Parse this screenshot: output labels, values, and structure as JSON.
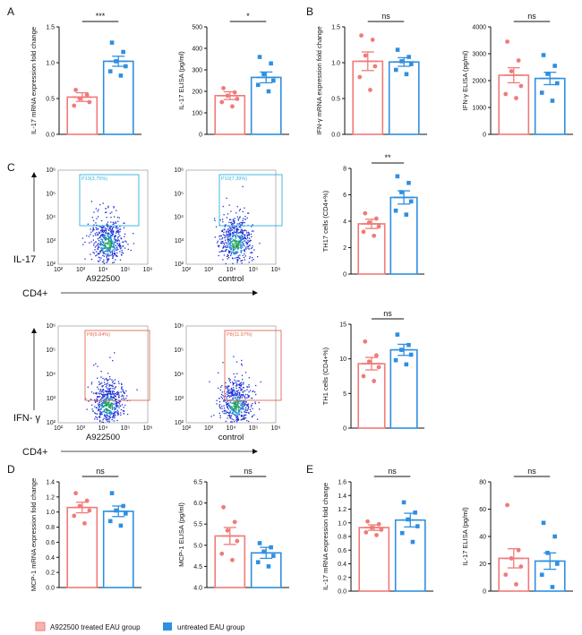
{
  "legend": {
    "items": [
      {
        "label": "A922500 treated EAU group",
        "color": "#f07b78"
      },
      {
        "label": "untreated EAU group",
        "color": "#2f8fe0"
      }
    ]
  },
  "colors": {
    "red": "#f07b78",
    "blue": "#2f8fe0",
    "gate_blue": "#2cb4e0",
    "gate_red": "#e06a55"
  },
  "chart_data": [
    {
      "panel": "A",
      "type": "bar",
      "ylabel": "IL-17 mRNA expression fold change",
      "categories": [
        "A922500 treated EAU group",
        "untreated EAU group"
      ],
      "values": [
        0.52,
        1.02
      ],
      "sem": [
        0.06,
        0.07
      ],
      "ylim": [
        0,
        1.5
      ],
      "yticks": [
        "0.0",
        "0.5",
        "1.0",
        "1.5"
      ],
      "significance": "***",
      "points": [
        [
          0.62,
          0.55,
          0.5,
          0.45,
          0.4
        ],
        [
          1.28,
          1.15,
          1.02,
          0.95,
          0.88,
          0.82
        ]
      ]
    },
    {
      "panel": "A",
      "type": "bar",
      "ylabel": "IL-17 ELISA (pg/ml)",
      "categories": [
        "A922500 treated EAU group",
        "untreated EAU group"
      ],
      "values": [
        180,
        265
      ],
      "sem": [
        18,
        25
      ],
      "ylim": [
        0,
        500
      ],
      "yticks": [
        "0",
        "100",
        "200",
        "300",
        "400",
        "500"
      ],
      "significance": "*",
      "points": [
        [
          215,
          195,
          180,
          165,
          150,
          130
        ],
        [
          360,
          330,
          280,
          250,
          230,
          200
        ]
      ]
    },
    {
      "panel": "B",
      "type": "bar",
      "ylabel": "IFN-γ mRNA expression fold change",
      "categories": [
        "A922500 treated EAU group",
        "untreated EAU group"
      ],
      "values": [
        1.02,
        1.01
      ],
      "sem": [
        0.13,
        0.06
      ],
      "ylim": [
        0,
        1.5
      ],
      "yticks": [
        "0.0",
        "0.5",
        "1.0",
        "1.5"
      ],
      "significance": "ns",
      "points": [
        [
          1.38,
          1.32,
          1.1,
          0.95,
          0.8,
          0.62
        ],
        [
          1.18,
          1.08,
          1.02,
          0.98,
          0.9,
          0.84
        ]
      ]
    },
    {
      "panel": "B",
      "type": "bar",
      "ylabel": "IFN-γ ELISA (pg/ml)",
      "categories": [
        "A922500 treated EAU group",
        "untreated EAU group"
      ],
      "values": [
        2200,
        2080
      ],
      "sem": [
        280,
        230
      ],
      "ylim": [
        0,
        4000
      ],
      "yticks": [
        "0",
        "1000",
        "2000",
        "3000",
        "4000"
      ],
      "significance": "ns",
      "points": [
        [
          3450,
          2750,
          2350,
          1800,
          1500,
          1350
        ],
        [
          2950,
          2550,
          2250,
          1900,
          1550,
          1250
        ]
      ]
    },
    {
      "panel": "C",
      "type": "bar",
      "ylabel": "TH17 cells (CD4+%)",
      "categories": [
        "A922500 treated EAU group",
        "untreated EAU group"
      ],
      "values": [
        3.8,
        5.8
      ],
      "sem": [
        0.35,
        0.5
      ],
      "ylim": [
        0,
        8
      ],
      "yticks": [
        "0",
        "2",
        "4",
        "6",
        "8"
      ],
      "significance": "**",
      "points": [
        [
          4.6,
          4.2,
          3.9,
          3.6,
          3.2,
          2.9
        ],
        [
          7.4,
          6.9,
          6.2,
          5.5,
          4.8,
          4.5
        ]
      ]
    },
    {
      "panel": "C",
      "type": "bar",
      "ylabel": "TH1 cells (CD4+%)",
      "categories": [
        "A922500 treated EAU group",
        "untreated EAU group"
      ],
      "values": [
        9.3,
        11.3
      ],
      "sem": [
        0.9,
        0.8
      ],
      "ylim": [
        0,
        15
      ],
      "yticks": [
        "0",
        "5",
        "10",
        "15"
      ],
      "significance": "ns",
      "points": [
        [
          12.5,
          10.5,
          9.6,
          8.8,
          7.5,
          6.8
        ],
        [
          13.5,
          12.0,
          11.3,
          10.6,
          9.8,
          9.2
        ]
      ]
    },
    {
      "panel": "D",
      "type": "bar",
      "ylabel": "MCP-1 mRNA expression fold change",
      "categories": [
        "A922500 treated EAU group",
        "untreated EAU group"
      ],
      "values": [
        1.06,
        1.01
      ],
      "sem": [
        0.07,
        0.07
      ],
      "ylim": [
        0.0,
        1.4
      ],
      "yticks": [
        "0.0",
        "0.2",
        "0.4",
        "0.6",
        "0.8",
        "1.0",
        "1.2",
        "1.4"
      ],
      "significance": "ns",
      "points": [
        [
          1.25,
          1.15,
          1.08,
          1.02,
          0.95,
          0.85
        ],
        [
          1.25,
          1.08,
          1.02,
          0.98,
          0.88,
          0.82
        ]
      ]
    },
    {
      "panel": "D",
      "type": "bar",
      "ylabel": "MCP-1 ELISA (pg/ml)",
      "categories": [
        "A922500 treated EAU group",
        "untreated EAU group"
      ],
      "values": [
        5.22,
        4.82
      ],
      "sem": [
        0.2,
        0.13
      ],
      "ylim": [
        4.0,
        6.5
      ],
      "yticks": [
        "4.0",
        "4.5",
        "5.0",
        "5.5",
        "6.0",
        "6.5"
      ],
      "significance": "ns",
      "points": [
        [
          5.9,
          5.55,
          5.35,
          5.1,
          4.8,
          4.65
        ],
        [
          5.05,
          4.95,
          4.85,
          4.75,
          4.6,
          4.5
        ]
      ]
    },
    {
      "panel": "E",
      "type": "bar",
      "ylabel": "IL-17 mRNA expression fold change",
      "categories": [
        "A922500 treated EAU group",
        "untreated EAU group"
      ],
      "values": [
        0.93,
        1.04
      ],
      "sem": [
        0.04,
        0.1
      ],
      "ylim": [
        0,
        1.6
      ],
      "yticks": [
        "0.0",
        "0.2",
        "0.4",
        "0.6",
        "0.8",
        "1.0",
        "1.2",
        "1.4",
        "1.6"
      ],
      "significance": "ns",
      "points": [
        [
          1.02,
          0.98,
          0.93,
          0.9,
          0.86,
          0.82
        ],
        [
          1.3,
          1.15,
          1.05,
          0.95,
          0.85,
          0.72
        ]
      ]
    },
    {
      "panel": "E",
      "type": "bar",
      "ylabel": "IL-17 ELISA (pg/ml)",
      "categories": [
        "A922500 treated EAU group",
        "untreated EAU group"
      ],
      "values": [
        24,
        22
      ],
      "sem": [
        7,
        6
      ],
      "ylim": [
        0,
        80
      ],
      "yticks": [
        "0",
        "20",
        "40",
        "60",
        "80"
      ],
      "significance": "ns",
      "points": [
        [
          63,
          30,
          24,
          18,
          12,
          5
        ],
        [
          50,
          40,
          28,
          20,
          12,
          3
        ]
      ]
    }
  ],
  "flow": {
    "row1": {
      "left_gate": "P10(3.75%)",
      "right_gate": "P10(7.39%)",
      "left_label": "A922500",
      "right_label": "control",
      "y_axis": "IL-17",
      "x_axis": "CD4+"
    },
    "row2": {
      "left_gate": "P8(9.84%)",
      "right_gate": "P8(11.97%)",
      "left_label": "A922500",
      "right_label": "control",
      "y_axis": "IFN- γ",
      "x_axis": "CD4+"
    },
    "ticks": [
      "10²",
      "10³",
      "10⁴",
      "10⁵",
      "10⁶"
    ]
  },
  "panel_letters": [
    "A",
    "B",
    "C",
    "D",
    "E"
  ]
}
